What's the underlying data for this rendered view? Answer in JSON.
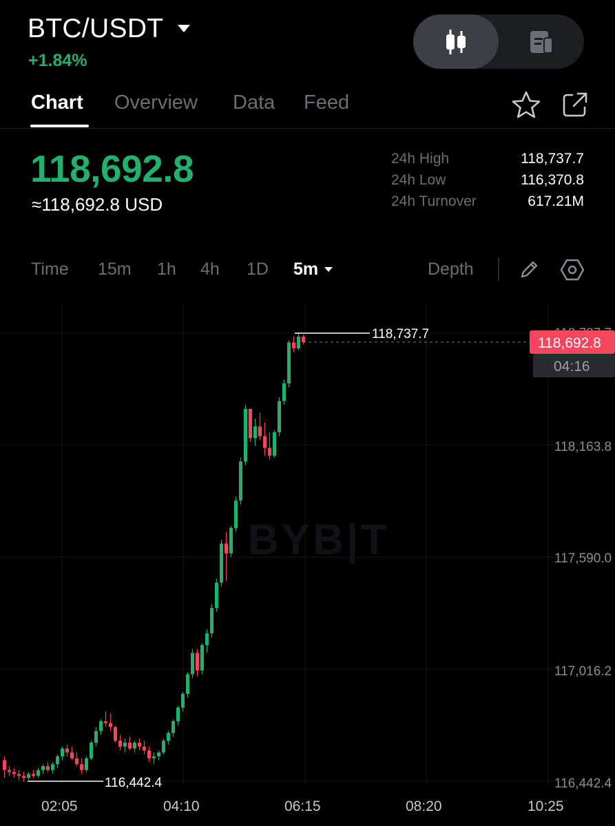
{
  "header": {
    "pair": "BTC/USDT",
    "change": "+1.84%",
    "colors": {
      "up": "#20b26c",
      "down": "#f6465d",
      "muted": "#6b6e75"
    }
  },
  "tabs": [
    {
      "label": "Chart",
      "active": true
    },
    {
      "label": "Overview",
      "active": false
    },
    {
      "label": "Data",
      "active": false
    },
    {
      "label": "Feed",
      "active": false
    }
  ],
  "header_icons": {
    "favorite": "star-icon",
    "share": "share-icon",
    "chart_view": "candlestick-icon",
    "info_view": "document-icon"
  },
  "price": {
    "last": "118,692.8",
    "usd": "≈118,692.8 USD"
  },
  "stats": [
    {
      "label": "24h High",
      "value": "118,737.7"
    },
    {
      "label": "24h Low",
      "value": "116,370.8"
    },
    {
      "label": "24h Turnover",
      "value": "617.21M"
    }
  ],
  "intervals": {
    "items": [
      "Time",
      "15m",
      "1h",
      "4h",
      "1D"
    ],
    "selected": "5m",
    "depth": "Depth"
  },
  "chart": {
    "watermark": "BYB|T",
    "current_price_tag": "118,692.8",
    "countdown": "04:16",
    "high_marker": "118,737.7",
    "low_marker": "116,442.4",
    "top_partial_label": "118,737.7",
    "y_labels": [
      "118,163.8",
      "117,590.0",
      "117,016.2",
      "116,442.4"
    ],
    "x_labels": [
      "02:05",
      "04:10",
      "06:15",
      "08:20",
      "10:25"
    ]
  },
  "chart_data": {
    "type": "candlestick",
    "interval": "5m",
    "ylim": [
      116442.4,
      118737.7
    ],
    "y_ticks": [
      118163.8,
      117590.0,
      117016.2,
      116442.4
    ],
    "x_ticks": [
      "02:05",
      "04:10",
      "06:15",
      "08:20",
      "10:25"
    ],
    "last_price": 118692.8,
    "high": 118737.7,
    "low": 116442.4,
    "candles_ohlc": [
      [
        116550,
        116570,
        116460,
        116500
      ],
      [
        116500,
        116520,
        116470,
        116490
      ],
      [
        116490,
        116510,
        116460,
        116480
      ],
      [
        116480,
        116500,
        116450,
        116470
      ],
      [
        116470,
        116490,
        116440,
        116460
      ],
      [
        116460,
        116490,
        116450,
        116480
      ],
      [
        116480,
        116500,
        116460,
        116470
      ],
      [
        116470,
        116510,
        116460,
        116500
      ],
      [
        116500,
        116530,
        116480,
        116520
      ],
      [
        116520,
        116540,
        116490,
        116500
      ],
      [
        116500,
        116540,
        116480,
        116530
      ],
      [
        116530,
        116580,
        116510,
        116570
      ],
      [
        116570,
        116620,
        116550,
        116610
      ],
      [
        116610,
        116630,
        116570,
        116590
      ],
      [
        116590,
        116620,
        116550,
        116560
      ],
      [
        116560,
        116590,
        116520,
        116530
      ],
      [
        116530,
        116560,
        116480,
        116500
      ],
      [
        116500,
        116570,
        116490,
        116560
      ],
      [
        116560,
        116650,
        116550,
        116640
      ],
      [
        116640,
        116720,
        116620,
        116700
      ],
      [
        116700,
        116760,
        116680,
        116750
      ],
      [
        116750,
        116800,
        116720,
        116740
      ],
      [
        116740,
        116790,
        116700,
        116720
      ],
      [
        116720,
        116730,
        116640,
        116650
      ],
      [
        116650,
        116680,
        116600,
        116620
      ],
      [
        116620,
        116660,
        116590,
        116640
      ],
      [
        116640,
        116670,
        116600,
        116610
      ],
      [
        116610,
        116650,
        116590,
        116640
      ],
      [
        116640,
        116660,
        116600,
        116620
      ],
      [
        116620,
        116650,
        116580,
        116600
      ],
      [
        116600,
        116620,
        116540,
        116560
      ],
      [
        116560,
        116590,
        116530,
        116570
      ],
      [
        116570,
        116600,
        116550,
        116590
      ],
      [
        116590,
        116660,
        116580,
        116650
      ],
      [
        116650,
        116700,
        116630,
        116690
      ],
      [
        116690,
        116760,
        116670,
        116750
      ],
      [
        116750,
        116830,
        116730,
        116820
      ],
      [
        116820,
        116900,
        116800,
        116890
      ],
      [
        116890,
        117000,
        116870,
        116990
      ],
      [
        116990,
        117120,
        116970,
        117100
      ],
      [
        117100,
        117120,
        116980,
        117010
      ],
      [
        117010,
        117150,
        116990,
        117140
      ],
      [
        117140,
        117220,
        117100,
        117200
      ],
      [
        117200,
        117350,
        117180,
        117330
      ],
      [
        117330,
        117480,
        117310,
        117460
      ],
      [
        117460,
        117680,
        117440,
        117660
      ],
      [
        117660,
        117720,
        117470,
        117610
      ],
      [
        117610,
        117750,
        117590,
        117740
      ],
      [
        117740,
        117900,
        117720,
        117880
      ],
      [
        117880,
        118100,
        117860,
        118080
      ],
      [
        118080,
        118370,
        118060,
        118350
      ],
      [
        118350,
        118340,
        118180,
        118200
      ],
      [
        118200,
        118300,
        118160,
        118260
      ],
      [
        118260,
        118330,
        118190,
        118210
      ],
      [
        118210,
        118280,
        118110,
        118150
      ],
      [
        118150,
        118230,
        118090,
        118110
      ],
      [
        118110,
        118240,
        118100,
        118230
      ],
      [
        118230,
        118410,
        118210,
        118390
      ],
      [
        118390,
        118500,
        118370,
        118480
      ],
      [
        118480,
        118700,
        118460,
        118690
      ],
      [
        118690,
        118720,
        118640,
        118660
      ],
      [
        118660,
        118737,
        118650,
        118720
      ],
      [
        118720,
        118730,
        118680,
        118692
      ]
    ]
  }
}
